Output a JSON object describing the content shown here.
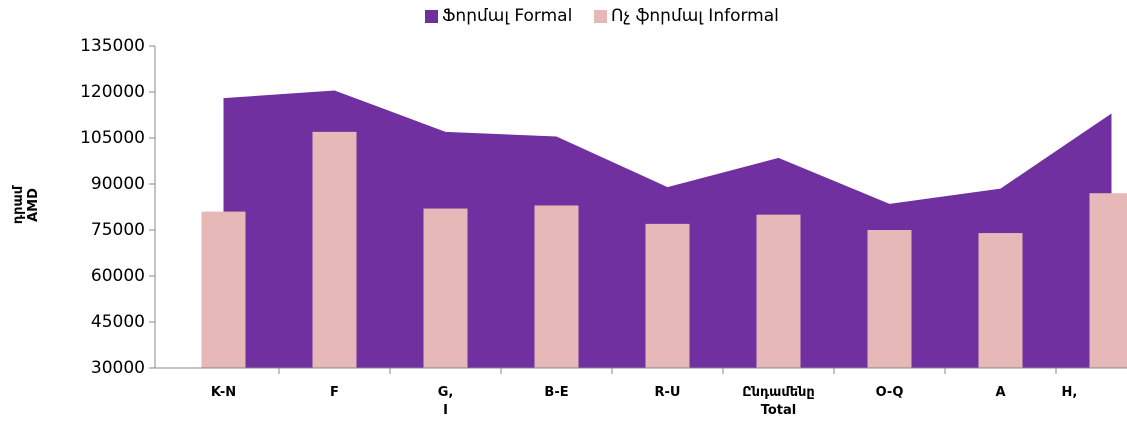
{
  "chart_data": {
    "type": "area_bar",
    "ylabel": "դրամ AMD",
    "categories": [
      "K-N",
      "F",
      "G, I",
      "B-E",
      "R-U",
      "Ընդամենը Total",
      "O-Q",
      "A",
      "H, J"
    ],
    "series": [
      {
        "name": "Ֆորմալ Formal",
        "color": "#7030a0",
        "kind": "area",
        "values": [
          118000,
          120500,
          107000,
          105500,
          89000,
          98500,
          83500,
          88500,
          113000
        ]
      },
      {
        "name": "Ոչ ֆորմալ Informal",
        "color": "#e6b8b7",
        "kind": "bar",
        "values": [
          81000,
          107000,
          82000,
          83000,
          77000,
          80000,
          75000,
          74000,
          87000
        ]
      }
    ],
    "ylim": [
      30000,
      135000
    ],
    "yticks": [
      30000,
      45000,
      60000,
      75000,
      90000,
      105000,
      120000,
      135000
    ],
    "legend": "top"
  }
}
